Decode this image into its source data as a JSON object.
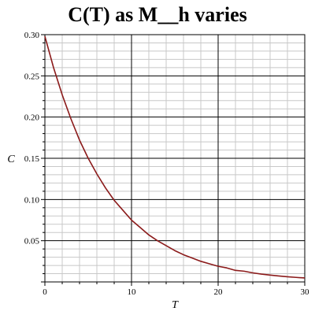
{
  "chart_data": {
    "type": "line",
    "title": "C(T) as M__h varies",
    "xlabel": "T",
    "ylabel": "C",
    "xlim": [
      0,
      30
    ],
    "ylim": [
      0,
      0.3
    ],
    "xticks": [
      "0",
      "10",
      "20",
      "30"
    ],
    "yticks": [
      "0.05",
      "0.10",
      "0.15",
      "0.20",
      "0.25",
      "0.30"
    ],
    "grid": true,
    "series": [
      {
        "color": "#8b1a1a",
        "x": [
          0,
          1,
          2,
          3,
          4,
          5,
          6,
          7,
          8,
          9,
          10,
          11,
          12,
          13,
          14,
          15,
          16,
          17,
          18,
          19,
          20,
          21,
          22,
          23,
          24,
          25,
          26,
          27,
          28,
          29,
          30
        ],
        "values": [
          0.298,
          0.26,
          0.227,
          0.198,
          0.172,
          0.15,
          0.131,
          0.114,
          0.099,
          0.087,
          0.075,
          0.066,
          0.057,
          0.05,
          0.044,
          0.038,
          0.033,
          0.029,
          0.025,
          0.022,
          0.019,
          0.017,
          0.014,
          0.013,
          0.011,
          0.0095,
          0.0083,
          0.0072,
          0.0063,
          0.0055,
          0.0048
        ]
      }
    ]
  }
}
